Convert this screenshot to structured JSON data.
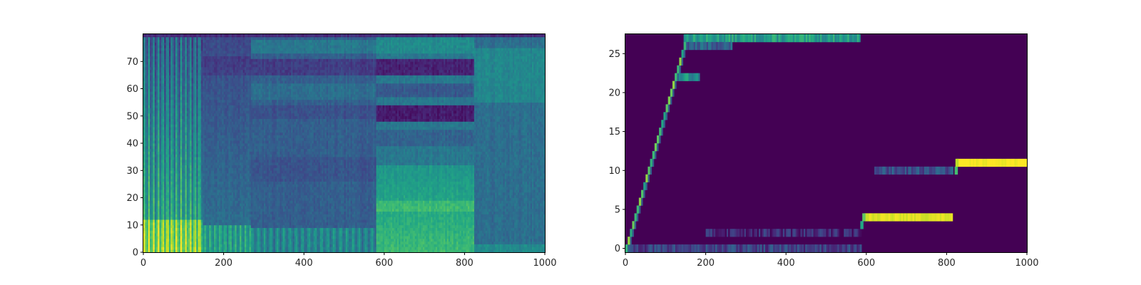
{
  "chart_data": [
    {
      "type": "heatmap",
      "title": "",
      "xlabel": "",
      "ylabel": "",
      "colormap": "viridis",
      "xlim": [
        0,
        1000
      ],
      "ylim": [
        0,
        80
      ],
      "xticks": [
        0,
        200,
        400,
        600,
        800,
        1000
      ],
      "yticks": [
        0,
        10,
        20,
        30,
        40,
        50,
        60,
        70
      ],
      "xticklabels": [
        "0",
        "200",
        "400",
        "600",
        "800",
        "1000"
      ],
      "yticklabels": [
        "0",
        "10",
        "20",
        "30",
        "40",
        "50",
        "60",
        "70"
      ],
      "segments": [
        {
          "x": [
            0,
            150
          ],
          "level": "high, striped vertical bands"
        },
        {
          "x": [
            150,
            270
          ],
          "level": "medium, bright near bottom rows"
        },
        {
          "x": [
            270,
            580
          ],
          "level": "low with dark bands near rows 50 and 68"
        },
        {
          "x": [
            580,
            825
          ],
          "level": "high in rows 0-30, very dark bands near rows 50 and 68"
        },
        {
          "x": [
            825,
            1000
          ],
          "level": "uniform medium-low"
        }
      ],
      "grid": false
    },
    {
      "type": "heatmap",
      "title": "",
      "xlabel": "",
      "ylabel": "",
      "colormap": "viridis",
      "xlim": [
        0,
        1000
      ],
      "ylim": [
        -0.5,
        27.5
      ],
      "xticks": [
        0,
        200,
        400,
        600,
        800,
        1000
      ],
      "yticks": [
        0,
        5,
        10,
        15,
        20,
        25
      ],
      "xticklabels": [
        "0",
        "200",
        "400",
        "600",
        "800",
        "1000"
      ],
      "yticklabels": [
        "0",
        "5",
        "10",
        "15",
        "20",
        "25"
      ],
      "diagonal": {
        "x_start": 0,
        "x_end": 145,
        "y_start": 0,
        "y_end": 26
      },
      "bands": [
        {
          "row": 27,
          "x": [
            145,
            585
          ],
          "intensity": 0.55
        },
        {
          "row": 26,
          "x": [
            150,
            265
          ],
          "intensity": 0.3
        },
        {
          "row": 22,
          "x": [
            125,
            185
          ],
          "intensity": 0.5
        },
        {
          "row": 4,
          "x": [
            595,
            815
          ],
          "intensity": 0.95
        },
        {
          "row": 11,
          "x": [
            825,
            1000
          ],
          "intensity": 1.0
        },
        {
          "row": 10,
          "x": [
            620,
            815
          ],
          "intensity": 0.25
        },
        {
          "row": 0,
          "x": [
            0,
            585
          ],
          "intensity": 0.2
        },
        {
          "row": 2,
          "x": [
            200,
            585
          ],
          "intensity": 0.12
        }
      ],
      "grid": false
    }
  ]
}
